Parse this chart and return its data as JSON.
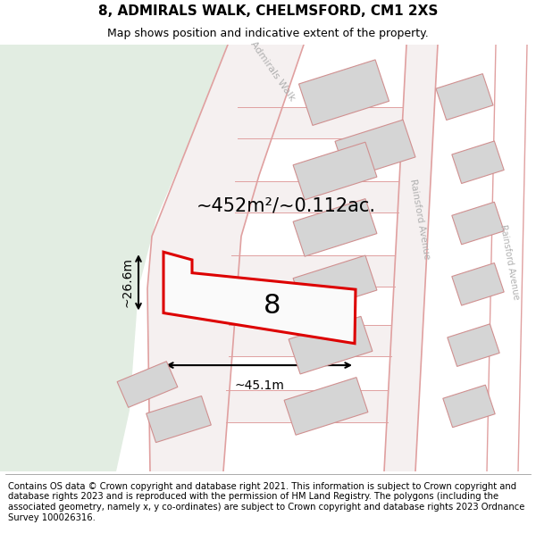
{
  "title_line1": "8, ADMIRALS WALK, CHELMSFORD, CM1 2XS",
  "title_line2": "Map shows position and indicative extent of the property.",
  "footer_text": "Contains OS data © Crown copyright and database right 2021. This information is subject to Crown copyright and database rights 2023 and is reproduced with the permission of HM Land Registry. The polygons (including the associated geometry, namely x, y co-ordinates) are subject to Crown copyright and database rights 2023 Ordnance Survey 100026316.",
  "area_label": "~452m²/~0.112ac.",
  "house_number": "8",
  "dim_width": "~45.1m",
  "dim_height": "~26.6m",
  "bg_color": "#f0f4f0",
  "green_color": "#e2ede2",
  "road_surface": "#f5f0f0",
  "road_line_color": "#e0a0a0",
  "plot_outline_color": "#dd0000",
  "plot_fill_color": "#fafafa",
  "building_fill": "#d5d5d5",
  "building_edge": "#d09090",
  "street_label_color": "#b0b0b0",
  "title_fontsize": 11,
  "footer_fontsize": 7.2,
  "area_fontsize": 15,
  "number_fontsize": 22,
  "dim_fontsize": 10
}
